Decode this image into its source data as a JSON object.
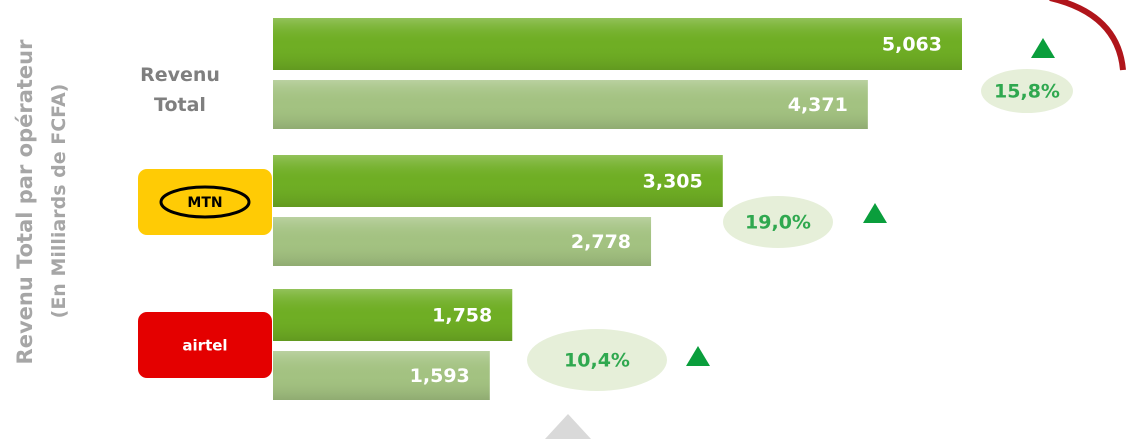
{
  "chart_data": {
    "type": "bar",
    "orientation": "horizontal",
    "y_label": "Revenu Total par opérateur",
    "y_sublabel": "(En Milliards de FCFA)",
    "categories": [
      "Revenu Total",
      "MTN",
      "airtel"
    ],
    "series": [
      {
        "color": "#6fae24",
        "values": [
          5063,
          3305,
          1758
        ],
        "value_labels": [
          "5,063",
          "3,305",
          "1,758"
        ]
      },
      {
        "color": "#a3c281",
        "values": [
          4371,
          2778,
          1593
        ],
        "value_labels": [
          "4,371",
          "2,778",
          "1,593"
        ]
      }
    ],
    "growth": {
      "values": [
        15.8,
        19.0,
        10.4
      ],
      "value_labels": [
        "15,8%",
        "19,0%",
        "10,4%"
      ],
      "color": "#2fa84f",
      "arrow_color": "#0a9e3c"
    }
  }
}
